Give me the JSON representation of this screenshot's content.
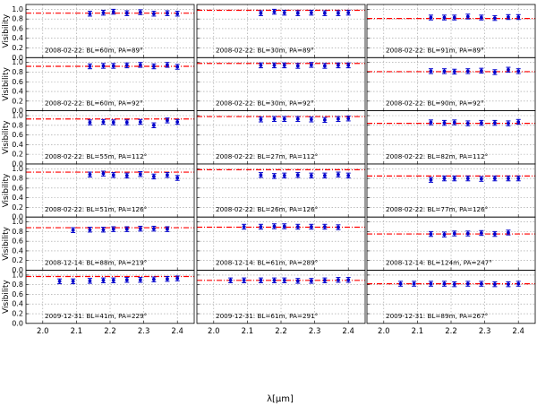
{
  "y_axis_label": "Visibility",
  "x_axis_label": "λ[μm]",
  "model_color": "#ff0000",
  "data_color": "#0000cc",
  "x_ticks": [
    "2.0",
    "2.1",
    "2.2",
    "2.3",
    "2.4"
  ],
  "y_ticks": [
    "0.0",
    "0.2",
    "0.4",
    "0.6",
    "0.8",
    "1.0"
  ],
  "chart_data": {
    "type": "scatter",
    "layout": "6 rows x 3 columns of small-multiple panels, shared axes",
    "xlabel": "λ[μm]",
    "ylabel": "Visibility",
    "xlim": [
      1.95,
      2.45
    ],
    "ylim": [
      0.0,
      1.1
    ],
    "grid": true,
    "x": [
      2.05,
      2.09,
      2.14,
      2.18,
      2.21,
      2.25,
      2.29,
      2.33,
      2.37,
      2.4
    ],
    "error": 0.05,
    "panels": [
      {
        "label": "2008-02-22: BL=60m, PA=89°",
        "model": 0.92,
        "data": [
          null,
          null,
          0.91,
          0.93,
          0.95,
          0.92,
          0.94,
          0.91,
          0.92,
          0.91
        ]
      },
      {
        "label": "2008-02-22: BL=30m, PA=89°",
        "model": 0.98,
        "data": [
          null,
          null,
          0.92,
          0.95,
          0.93,
          0.92,
          0.93,
          0.92,
          0.92,
          0.93
        ]
      },
      {
        "label": "2008-02-22: BL=91m, PA=89°",
        "model": 0.81,
        "data": [
          null,
          null,
          0.83,
          0.83,
          0.83,
          0.85,
          0.83,
          0.82,
          0.84,
          0.84
        ]
      },
      {
        "label": "2008-02-22: BL=60m, PA=92°",
        "model": 0.92,
        "data": [
          null,
          null,
          0.92,
          0.93,
          0.93,
          0.94,
          0.95,
          0.92,
          0.95,
          0.91
        ]
      },
      {
        "label": "2008-02-22: BL=30m, PA=92°",
        "model": 0.98,
        "data": [
          null,
          null,
          0.94,
          0.94,
          0.94,
          0.93,
          0.95,
          0.93,
          0.94,
          0.94
        ]
      },
      {
        "label": "2008-02-22: BL=90m, PA=92°",
        "model": 0.81,
        "data": [
          null,
          null,
          0.82,
          0.82,
          0.81,
          0.82,
          0.83,
          0.8,
          0.85,
          0.82
        ]
      },
      {
        "label": "2008-02-22: BL=55m, PA=112°",
        "model": 0.93,
        "data": [
          null,
          null,
          0.86,
          0.87,
          0.86,
          0.86,
          0.87,
          0.8,
          0.9,
          0.87
        ]
      },
      {
        "label": "2008-02-22: BL=27m, PA=112°",
        "model": 0.98,
        "data": [
          null,
          null,
          0.92,
          0.93,
          0.93,
          0.93,
          0.92,
          0.91,
          0.93,
          0.94
        ]
      },
      {
        "label": "2008-02-22: BL=82m, PA=112°",
        "model": 0.84,
        "data": [
          null,
          null,
          0.86,
          0.85,
          0.86,
          0.84,
          0.85,
          0.85,
          0.84,
          0.87
        ]
      },
      {
        "label": "2008-02-22: BL=51m, PA=126°",
        "model": 0.93,
        "data": [
          null,
          null,
          0.88,
          0.9,
          0.87,
          0.86,
          0.89,
          0.84,
          0.87,
          0.81
        ]
      },
      {
        "label": "2008-02-22: BL=26m, PA=126°",
        "model": 0.98,
        "data": [
          null,
          null,
          0.87,
          0.85,
          0.86,
          0.87,
          0.86,
          0.86,
          0.88,
          0.86
        ]
      },
      {
        "label": "2008-02-22: BL=77m, PA=126°",
        "model": 0.85,
        "data": [
          null,
          null,
          0.77,
          0.8,
          0.8,
          0.8,
          0.79,
          0.8,
          0.8,
          0.8
        ]
      },
      {
        "label": "2008-12-14: BL=88m, PA=219°",
        "model": 0.88,
        "data": [
          null,
          0.83,
          0.84,
          0.84,
          0.85,
          0.85,
          0.86,
          0.86,
          0.85,
          null
        ]
      },
      {
        "label": "2008-12-14: BL=61m, PA=289°",
        "model": 0.89,
        "data": [
          null,
          0.9,
          0.9,
          0.91,
          0.91,
          0.9,
          0.9,
          0.9,
          0.89,
          null
        ]
      },
      {
        "label": "2008-12-14: BL=124m, PA=247°",
        "model": 0.75,
        "data": [
          null,
          null,
          0.75,
          0.74,
          0.76,
          0.76,
          0.77,
          0.75,
          0.78,
          null
        ]
      },
      {
        "label": "2009-12-31: BL=41m, PA=229°",
        "model": 0.97,
        "data": [
          0.87,
          0.87,
          0.88,
          0.89,
          0.89,
          0.9,
          0.9,
          0.91,
          0.92,
          0.93
        ]
      },
      {
        "label": "2009-12-31: BL=61m, PA=291°",
        "model": 0.89,
        "data": [
          0.89,
          0.89,
          0.89,
          0.89,
          0.89,
          0.88,
          0.88,
          0.89,
          0.9,
          0.9
        ]
      },
      {
        "label": "2009-12-31: BL=89m, PA=267°",
        "model": 0.82,
        "data": [
          0.82,
          0.82,
          0.82,
          0.82,
          0.81,
          0.82,
          0.82,
          0.81,
          0.81,
          0.82
        ]
      }
    ]
  }
}
